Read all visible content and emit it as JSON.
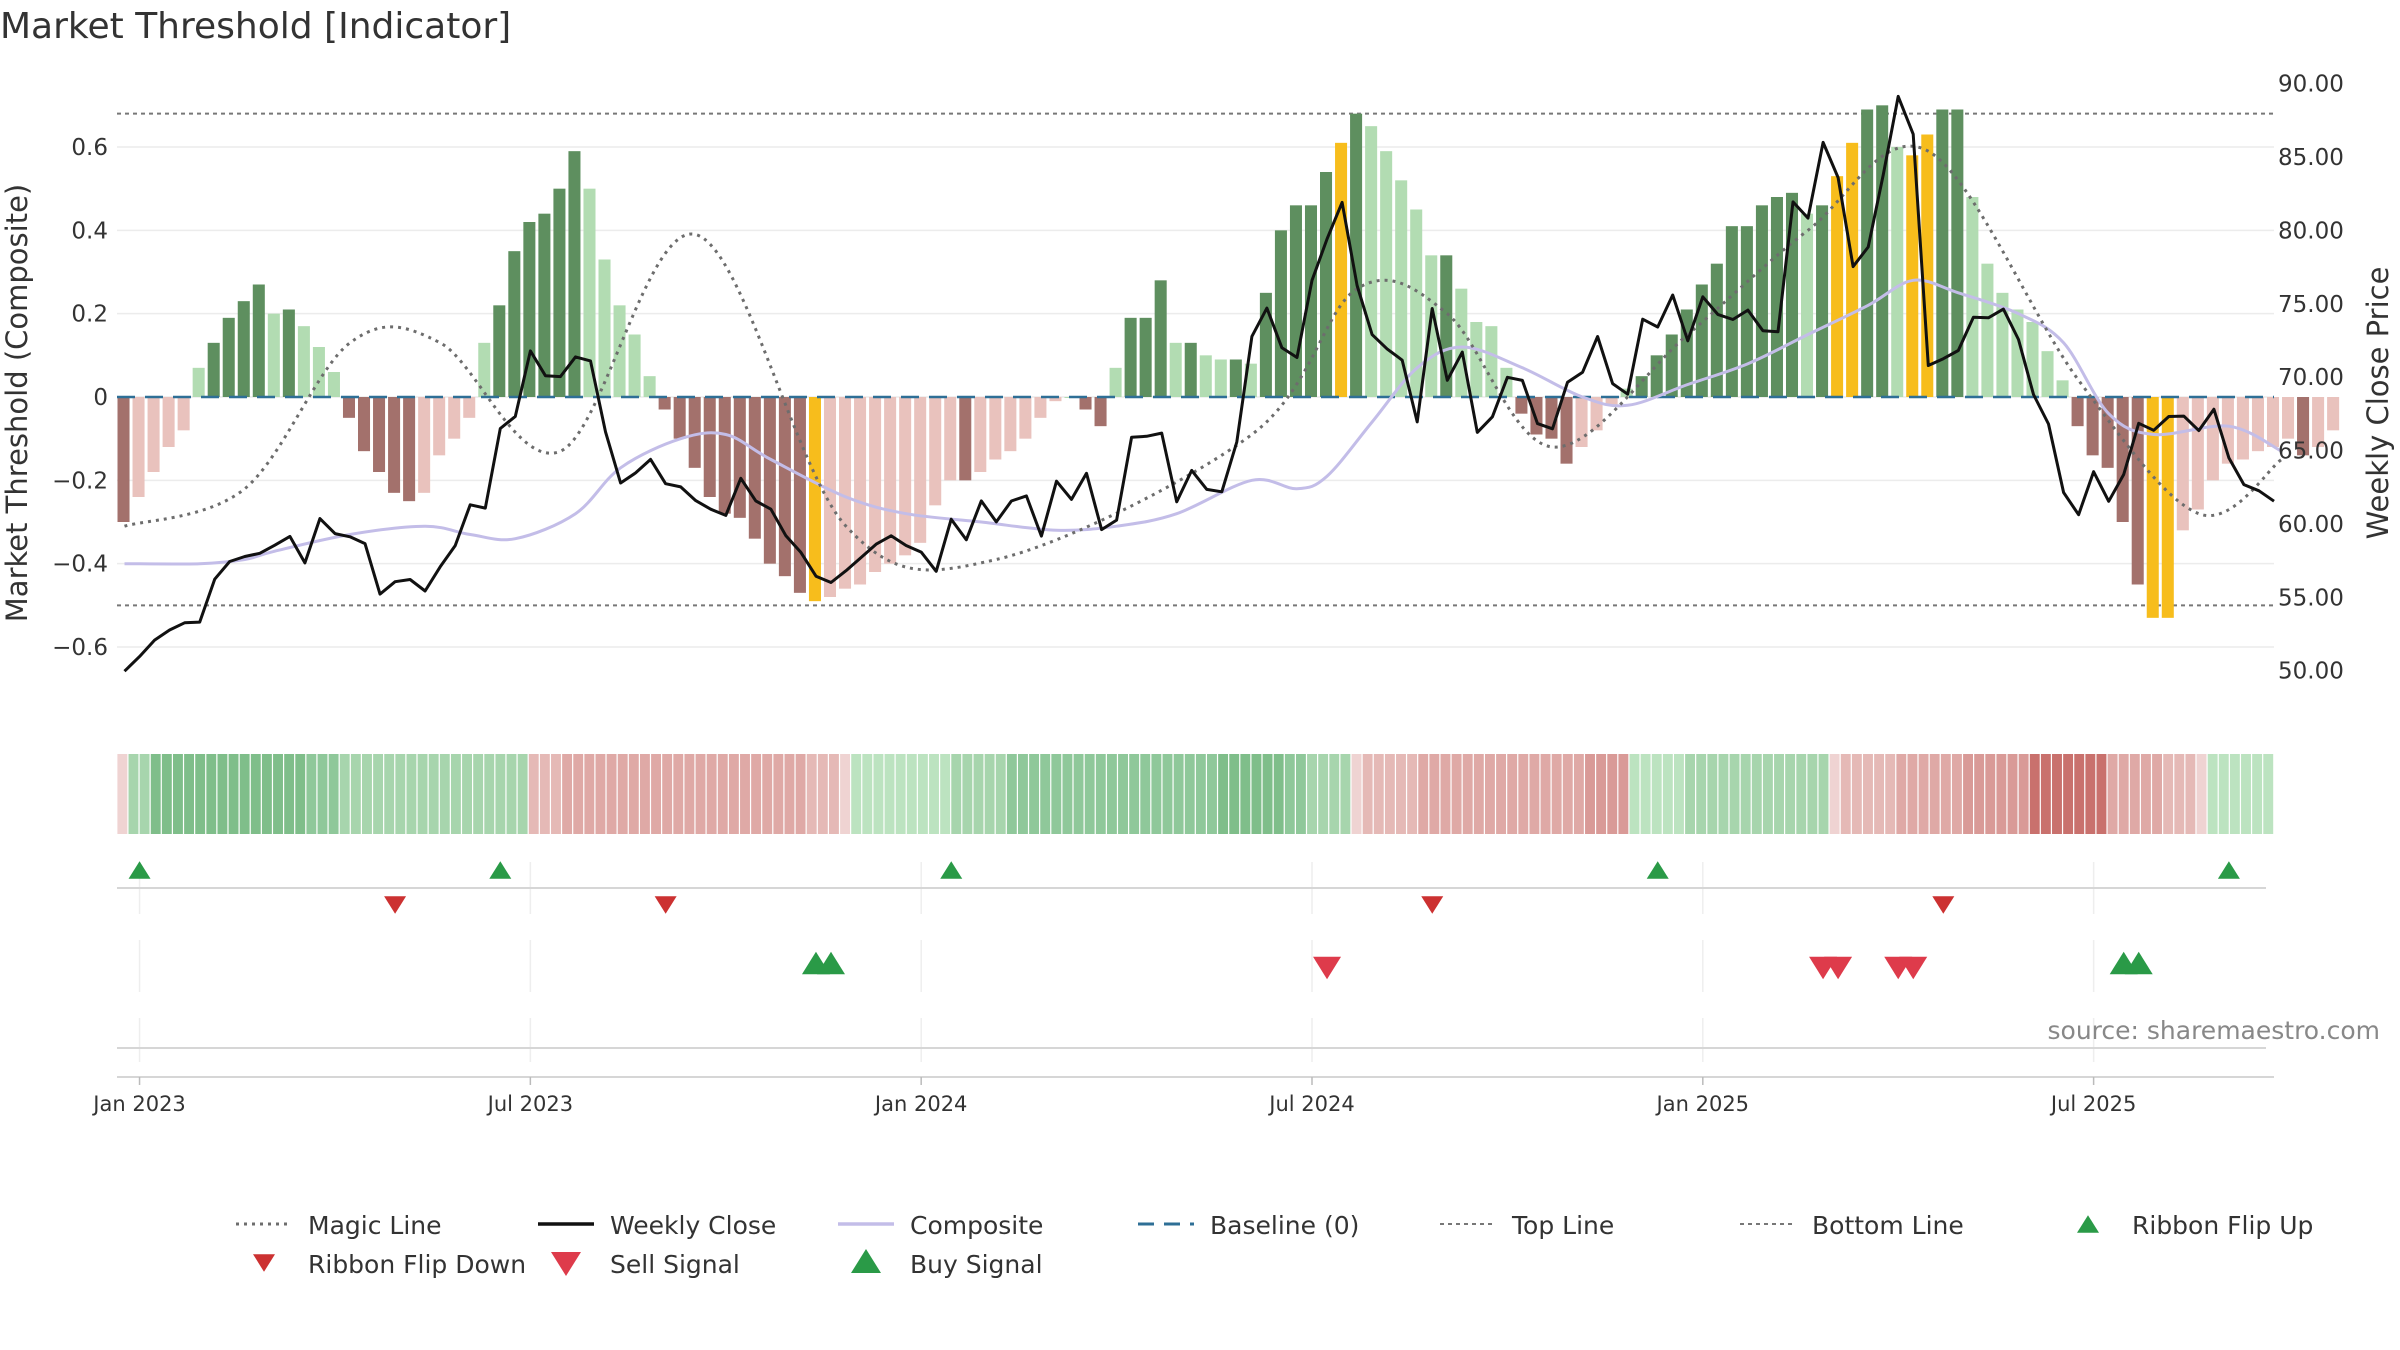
{
  "chart_data": {
    "type": "bar",
    "title": "Market Threshold [Indicator]",
    "ylabel": "Market Threshold (Composite)",
    "ylabel_right": "Weekly Close Price",
    "source": "source: sharemaestro.com",
    "ylim": [
      -0.78,
      0.78
    ],
    "ylim_right": [
      46.5,
      90.8
    ],
    "yticks": [
      {
        "v": 0.6,
        "label": "0.6"
      },
      {
        "v": 0.4,
        "label": "0.4"
      },
      {
        "v": 0.2,
        "label": "0.2"
      },
      {
        "v": 0,
        "label": "0"
      },
      {
        "v": -0.2,
        "label": "−0.2"
      },
      {
        "v": -0.4,
        "label": "−0.4"
      },
      {
        "v": -0.6,
        "label": "−0.6"
      }
    ],
    "yticks_right": [
      {
        "v": 90,
        "label": "90.00"
      },
      {
        "v": 85,
        "label": "85.00"
      },
      {
        "v": 80,
        "label": "80.00"
      },
      {
        "v": 75,
        "label": "75.00"
      },
      {
        "v": 70,
        "label": "70.00"
      },
      {
        "v": 65,
        "label": "65.00"
      },
      {
        "v": 60,
        "label": "60.00"
      },
      {
        "v": 55,
        "label": "55.00"
      },
      {
        "v": 50,
        "label": "50.00"
      }
    ],
    "xticks": [
      {
        "w": 1.5,
        "label": "Jan 2023"
      },
      {
        "w": 27.5,
        "label": "Jul 2023"
      },
      {
        "w": 53.5,
        "label": "Jan 2024"
      },
      {
        "w": 79.5,
        "label": "Jul 2024"
      },
      {
        "w": 105.5,
        "label": "Jan 2025"
      },
      {
        "w": 131.5,
        "label": "Jul 2025"
      }
    ],
    "x_range": [
      0,
      143.5
    ],
    "top_line": 0.68,
    "bottom_line": -0.5,
    "baseline": 0,
    "colors": {
      "dark_green": "#5e8f5f",
      "light_green": "#b2dcb2",
      "dark_red": "#a3716c",
      "light_red": "#e9c2bd",
      "gold": "#f7bd1c",
      "magic_line": "#6d6d6d",
      "weekly_close": "#111111",
      "composite": "#c3bde8",
      "baseline": "#2e6f96",
      "threshold_lines": "#777777",
      "ribbon_flip_up": "#2a9a47",
      "ribbon_flip_down": "#cc3131",
      "sell_signal": "#de3b4b",
      "buy_signal": "#2a9a47"
    },
    "composite_bars": [
      -0.3,
      -0.24,
      -0.18,
      -0.12,
      -0.08,
      0.07,
      0.13,
      0.19,
      0.23,
      0.27,
      0.2,
      0.21,
      0.17,
      0.12,
      0.06,
      -0.05,
      -0.13,
      -0.18,
      -0.23,
      -0.25,
      -0.23,
      -0.14,
      -0.1,
      -0.05,
      0.13,
      0.22,
      0.35,
      0.42,
      0.44,
      0.5,
      0.59,
      0.5,
      0.33,
      0.22,
      0.15,
      0.05,
      -0.03,
      -0.1,
      -0.17,
      -0.24,
      -0.28,
      -0.29,
      -0.34,
      -0.4,
      -0.43,
      -0.47,
      -0.49,
      -0.48,
      -0.46,
      -0.45,
      -0.42,
      -0.4,
      -0.38,
      -0.35,
      -0.26,
      -0.2,
      -0.2,
      -0.18,
      -0.15,
      -0.13,
      -0.1,
      -0.05,
      -0.01,
      0.0,
      -0.03,
      -0.07,
      0.07,
      0.19,
      0.19,
      0.28,
      0.13,
      0.13,
      0.1,
      0.09,
      0.09,
      0.08,
      0.25,
      0.4,
      0.46,
      0.46,
      0.54,
      0.61,
      0.68,
      0.65,
      0.59,
      0.52,
      0.45,
      0.34,
      0.34,
      0.26,
      0.18,
      0.17,
      0.07,
      -0.04,
      -0.09,
      -0.1,
      -0.16,
      -0.12,
      -0.08,
      -0.02,
      0.02,
      0.05,
      0.1,
      0.15,
      0.21,
      0.27,
      0.32,
      0.41,
      0.41,
      0.46,
      0.48,
      0.49,
      0.44,
      0.46,
      0.53,
      0.61,
      0.69,
      0.7,
      0.6,
      0.58,
      0.63,
      0.69,
      0.69,
      0.48,
      0.32,
      0.25,
      0.21,
      0.18,
      0.11,
      0.04,
      -0.07,
      -0.14,
      -0.17,
      -0.3,
      -0.45,
      -0.53,
      -0.53,
      -0.32,
      -0.27,
      -0.2,
      -0.16,
      -0.15,
      -0.13,
      -0.12,
      -0.1,
      -0.14,
      -0.12,
      -0.08
    ],
    "gold_weeks": [
      46,
      81,
      114,
      115,
      119,
      120,
      135,
      136
    ],
    "magic_line": [
      [
        0,
        -0.31
      ],
      [
        8,
        -0.22
      ],
      [
        15,
        0.13
      ],
      [
        21,
        0.13
      ],
      [
        29,
        -0.13
      ],
      [
        38,
        0.39
      ],
      [
        48,
        -0.31
      ],
      [
        58,
        -0.39
      ],
      [
        75,
        -0.09
      ],
      [
        82,
        0.26
      ],
      [
        88,
        0.2
      ],
      [
        95,
        -0.12
      ],
      [
        104,
        0.15
      ],
      [
        112,
        0.4
      ],
      [
        120,
        0.59
      ],
      [
        130,
        0.04
      ],
      [
        138,
        -0.28
      ],
      [
        143.5,
        -0.15
      ]
    ],
    "weekly_close": [
      49.96,
      50.96,
      52.08,
      52.77,
      53.26,
      53.31,
      56.23,
      57.44,
      57.78,
      58.0,
      58.55,
      59.15,
      57.34,
      60.36,
      59.34,
      59.12,
      58.66,
      55.22,
      56.06,
      56.21,
      55.43,
      57.08,
      58.52,
      61.3,
      61.08,
      66.5,
      67.33,
      71.79,
      70.1,
      70.04,
      71.38,
      71.11,
      66.28,
      62.79,
      63.48,
      64.4,
      62.74,
      62.52,
      61.59,
      61.0,
      60.58,
      63.11,
      61.57,
      61.0,
      59.19,
      58.06,
      56.44,
      56.01,
      56.81,
      57.71,
      58.62,
      59.19,
      58.53,
      58.08,
      56.77,
      60.32,
      58.92,
      61.57,
      60.14,
      61.56,
      61.91,
      59.17,
      62.91,
      61.67,
      63.45,
      59.61,
      60.26,
      65.91,
      65.97,
      66.19,
      61.51,
      63.65,
      62.35,
      62.19,
      65.58,
      72.78,
      74.71,
      72.0,
      71.34,
      76.6,
      79.41,
      81.91,
      76.25,
      72.9,
      71.93,
      71.16,
      66.95,
      74.68,
      69.79,
      71.71,
      66.24,
      67.3,
      69.99,
      69.78,
      66.84,
      66.48,
      69.65,
      70.34,
      72.77,
      69.56,
      68.84,
      73.95,
      73.42,
      75.6,
      72.48,
      75.48,
      74.28,
      73.93,
      74.57,
      73.17,
      73.1,
      81.95,
      80.84,
      86.0,
      83.6,
      77.54,
      78.87,
      83.77,
      89.14,
      86.56,
      70.8,
      71.26,
      71.82,
      74.08,
      74.05,
      74.64,
      72.57,
      68.82,
      66.81,
      62.14,
      60.63,
      63.56,
      61.54,
      63.37,
      66.86,
      66.38,
      67.32,
      67.35,
      66.36,
      67.82,
      64.5,
      62.68,
      62.26,
      61.55
    ],
    "composite_line": [
      [
        0,
        -0.4
      ],
      [
        5,
        -0.4
      ],
      [
        8,
        -0.39
      ],
      [
        10,
        -0.37
      ],
      [
        15,
        -0.33
      ],
      [
        20,
        -0.31
      ],
      [
        23,
        -0.33
      ],
      [
        26,
        -0.34
      ],
      [
        30,
        -0.28
      ],
      [
        33,
        -0.17
      ],
      [
        37,
        -0.1
      ],
      [
        40,
        -0.09
      ],
      [
        43,
        -0.15
      ],
      [
        48,
        -0.24
      ],
      [
        52,
        -0.28
      ],
      [
        57,
        -0.3
      ],
      [
        62,
        -0.32
      ],
      [
        66,
        -0.31
      ],
      [
        70,
        -0.28
      ],
      [
        75,
        -0.2
      ],
      [
        78,
        -0.22
      ],
      [
        80,
        -0.19
      ],
      [
        83,
        -0.06
      ],
      [
        86,
        0.07
      ],
      [
        89,
        0.12
      ],
      [
        93,
        0.07
      ],
      [
        97,
        0.0
      ],
      [
        100,
        -0.02
      ],
      [
        104,
        0.03
      ],
      [
        108,
        0.08
      ],
      [
        112,
        0.15
      ],
      [
        116,
        0.22
      ],
      [
        119,
        0.28
      ],
      [
        122,
        0.25
      ],
      [
        126,
        0.2
      ],
      [
        129,
        0.13
      ],
      [
        132,
        -0.04
      ],
      [
        135,
        -0.09
      ],
      [
        140,
        -0.07
      ],
      [
        143.5,
        -0.13
      ]
    ],
    "ribbon_colors": [
      "#efd3d2",
      "#a7d5ad",
      "#a7d5ad",
      "#7fbe8a",
      "#7fbe8a",
      "#7fbe8a",
      "#7fbe8a",
      "#7fbe8a",
      "#7fbe8a",
      "#7fbe8a",
      "#7fbe8a",
      "#7fbe8a",
      "#7fbe8a",
      "#7fbe8a",
      "#7fbe8a",
      "#7fbe8a",
      "#7fbe8a",
      "#8fc89a",
      "#8fc89a",
      "#8fc89a",
      "#a7d5ad",
      "#a7d5ad",
      "#a7d5ad",
      "#a7d5ad",
      "#a7d5ad",
      "#a7d5ad",
      "#a7d5ad",
      "#a7d5ad",
      "#a7d5ad",
      "#a7d5ad",
      "#a7d5ad",
      "#a7d5ad",
      "#a7d5ad",
      "#a7d5ad",
      "#a7d5ad",
      "#a7d5ad",
      "#a7d5ad",
      "#e5b9b6",
      "#e5b9b6",
      "#e5b9b6",
      "#dfa9a6",
      "#dfa9a6",
      "#dfa9a6",
      "#dfa9a6",
      "#dfa9a6",
      "#dfa9a6",
      "#dfa9a6",
      "#dfa9a6",
      "#dfa9a6",
      "#dfa9a6",
      "#dfa9a6",
      "#dfa9a6",
      "#dfa9a6",
      "#dfa9a6",
      "#dfa9a6",
      "#dfa9a6",
      "#dfa9a6",
      "#dfa9a6",
      "#dfa9a6",
      "#dfa9a6",
      "#dfa9a6",
      "#dfa9a6",
      "#e5b9b6",
      "#e5b9b6",
      "#e5b9b6",
      "#efd3d2",
      "#bce3c0",
      "#bce3c0",
      "#bce3c0",
      "#bce3c0",
      "#bce3c0",
      "#bce3c0",
      "#bce3c0",
      "#bce3c0",
      "#bce3c0",
      "#a7d5ad",
      "#a7d5ad",
      "#a7d5ad",
      "#a7d5ad",
      "#a7d5ad",
      "#8fc89a",
      "#8fc89a",
      "#8fc89a",
      "#8fc89a",
      "#8fc89a",
      "#8fc89a",
      "#8fc89a",
      "#8fc89a",
      "#8fc89a",
      "#8fc89a",
      "#8fc89a",
      "#8fc89a",
      "#8fc89a",
      "#8fc89a",
      "#8fc89a",
      "#8fc89a",
      "#8fc89a",
      "#8fc89a",
      "#8fc89a",
      "#7fbe8a",
      "#7fbe8a",
      "#7fbe8a",
      "#7fbe8a",
      "#7fbe8a",
      "#7fbe8a",
      "#8fc89a",
      "#8fc89a",
      "#a7d5ad",
      "#a7d5ad",
      "#a7d5ad",
      "#a7d5ad",
      "#efd3d2",
      "#e5b9b6",
      "#e5b9b6",
      "#e5b9b6",
      "#e5b9b6",
      "#e5b9b6",
      "#dfa9a6",
      "#dfa9a6",
      "#dfa9a6",
      "#dfa9a6",
      "#dfa9a6",
      "#dfa9a6",
      "#dfa9a6",
      "#dfa9a6",
      "#dfa9a6",
      "#dfa9a6",
      "#dfa9a6",
      "#dfa9a6",
      "#dfa9a6",
      "#dfa9a6",
      "#dfa9a6",
      "#d99a97",
      "#d99a97",
      "#d99a97",
      "#d99a97",
      "#bce3c0",
      "#bce3c0",
      "#bce3c0",
      "#bce3c0",
      "#bce3c0",
      "#a7d5ad",
      "#a7d5ad",
      "#a7d5ad",
      "#a7d5ad",
      "#a7d5ad",
      "#a7d5ad",
      "#a7d5ad",
      "#a7d5ad",
      "#a7d5ad",
      "#a7d5ad",
      "#a7d5ad",
      "#a7d5ad",
      "#a7d5ad",
      "#efd3d2",
      "#e5b9b6",
      "#e5b9b6",
      "#e5b9b6",
      "#e5b9b6",
      "#e5b9b6",
      "#dfa9a6",
      "#dfa9a6",
      "#dfa9a6",
      "#dfa9a6",
      "#dfa9a6",
      "#dfa9a6",
      "#d99a97",
      "#d99a97",
      "#d99a97",
      "#d99a97",
      "#d99a97",
      "#d99a97",
      "#c9716d",
      "#c9716d",
      "#c9716d",
      "#c9716d",
      "#c9716d",
      "#c9716d",
      "#c9716d",
      "#dfa9a6",
      "#dfa9a6",
      "#dfa9a6",
      "#dfa9a6",
      "#dfa9a6",
      "#e5b9b6",
      "#e5b9b6",
      "#e5b9b6",
      "#efd3d2",
      "#bce3c0",
      "#bce3c0",
      "#bce3c0",
      "#bce3c0",
      "#bce3c0",
      "#bce3c0"
    ],
    "ribbon_flip_up": [
      1,
      25,
      55,
      102,
      140
    ],
    "ribbon_flip_down": [
      18,
      36,
      87,
      121
    ],
    "buy_signals": [
      46,
      47,
      133,
      134
    ],
    "sell_signals": [
      80,
      113,
      114,
      118,
      119
    ],
    "legend": [
      {
        "label": "Magic Line",
        "kind": "dotted",
        "color": "#6d6d6d"
      },
      {
        "label": "Weekly Close",
        "kind": "solid",
        "color": "#111111"
      },
      {
        "label": "Composite",
        "kind": "solid",
        "color": "#c3bde8"
      },
      {
        "label": "Baseline (0)",
        "kind": "dashed",
        "color": "#2e6f96"
      },
      {
        "label": "Top Line",
        "kind": "fine-dash",
        "color": "#777777"
      },
      {
        "label": "Bottom Line",
        "kind": "fine-dash",
        "color": "#777777"
      },
      {
        "label": "Ribbon Flip Up",
        "kind": "tri-up",
        "color": "#2a9a47"
      },
      {
        "label": "Ribbon Flip Down",
        "kind": "tri-down",
        "color": "#cc3131"
      },
      {
        "label": "Sell Signal",
        "kind": "tri-down-big",
        "color": "#de3b4b"
      },
      {
        "label": "Buy Signal",
        "kind": "tri-up-big",
        "color": "#2a9a47"
      }
    ]
  }
}
